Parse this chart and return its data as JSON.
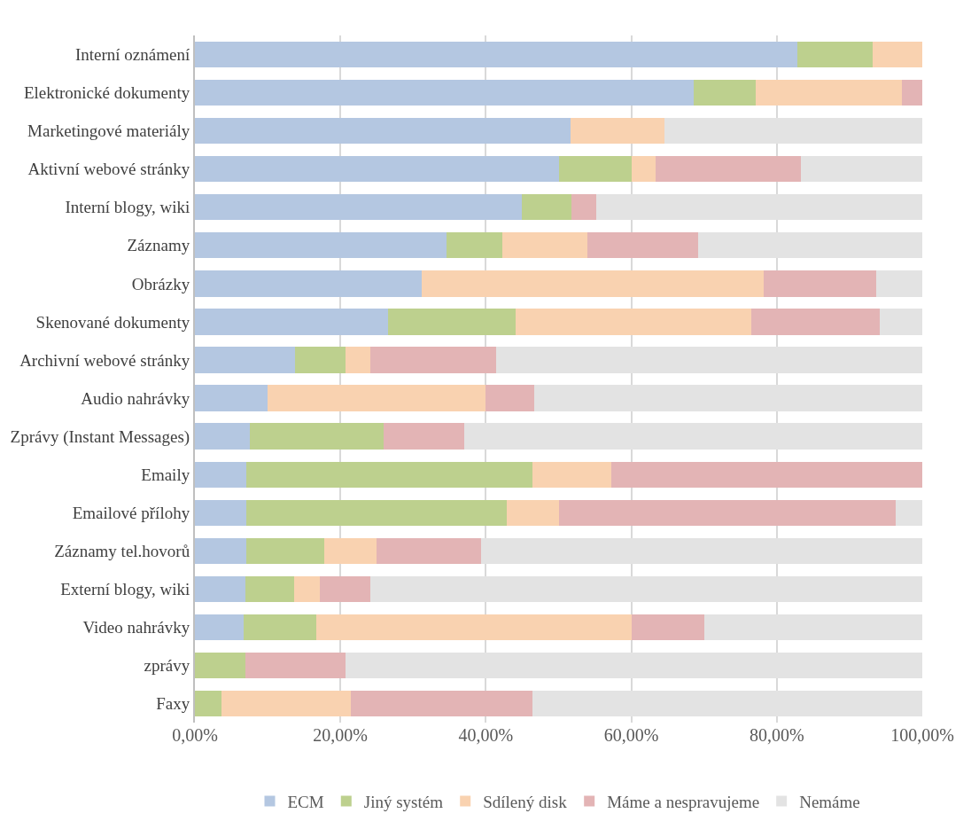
{
  "chart_data": {
    "type": "bar",
    "orientation": "horizontal",
    "stacked": true,
    "categories": [
      "Interní oznámení",
      "Elektronické dokumenty",
      "Marketingové materiály",
      "Aktivní webové stránky",
      "Interní blogy, wiki",
      "Záznamy",
      "Obrázky",
      "Skenované dokumenty",
      "Archivní webové stránky",
      "Audio nahrávky",
      "Zprávy (Instant Messages)",
      "Emaily",
      "Emailové přílohy",
      "Záznamy tel.hovorů",
      "Externí blogy, wiki",
      "Video nahrávky",
      "zprávy",
      "Faxy"
    ],
    "series": [
      {
        "name": "ECM",
        "color": "#b4c7e1",
        "values": [
          82.8,
          68.6,
          51.6,
          50.1,
          44.9,
          34.6,
          31.2,
          26.5,
          13.8,
          10.0,
          7.5,
          7.1,
          7.1,
          7.1,
          6.9,
          6.7,
          0,
          0
        ]
      },
      {
        "name": "Jiný systém",
        "color": "#bdd08e",
        "values": [
          10.4,
          8.5,
          0,
          9.9,
          6.9,
          7.7,
          0,
          17.6,
          6.9,
          0,
          18.4,
          39.3,
          35.8,
          10.7,
          6.8,
          10.0,
          6.9,
          3.6
        ]
      },
      {
        "name": "Sdílený disk",
        "color": "#f9d2b0",
        "values": [
          6.8,
          20.1,
          12.9,
          3.3,
          0,
          11.6,
          47.0,
          32.4,
          3.4,
          30.0,
          0,
          10.8,
          7.2,
          7.2,
          3.5,
          43.3,
          0,
          17.8
        ]
      },
      {
        "name": "Máme a nespravujeme",
        "color": "#e3b4b5",
        "values": [
          0,
          2.8,
          0,
          20.0,
          3.4,
          15.3,
          15.5,
          17.6,
          17.3,
          6.6,
          11.1,
          42.8,
          46.3,
          14.3,
          6.9,
          10.0,
          13.8,
          25.0
        ]
      },
      {
        "name": "Nemáme",
        "color": "#e3e3e3",
        "values": [
          0,
          0,
          35.5,
          16.7,
          44.8,
          30.8,
          6.3,
          5.9,
          58.6,
          53.4,
          63.0,
          0,
          3.6,
          60.7,
          75.9,
          30.0,
          79.3,
          53.6
        ]
      }
    ],
    "xlim": [
      0,
      100
    ],
    "xticks": [
      {
        "value": 0,
        "label": "0,00%"
      },
      {
        "value": 20,
        "label": "20,00%"
      },
      {
        "value": 40,
        "label": "40,00%"
      },
      {
        "value": 60,
        "label": "60,00%"
      },
      {
        "value": 80,
        "label": "80,00%"
      },
      {
        "value": 100,
        "label": "100,00%"
      }
    ],
    "grid": "x",
    "legend": "bottom"
  }
}
